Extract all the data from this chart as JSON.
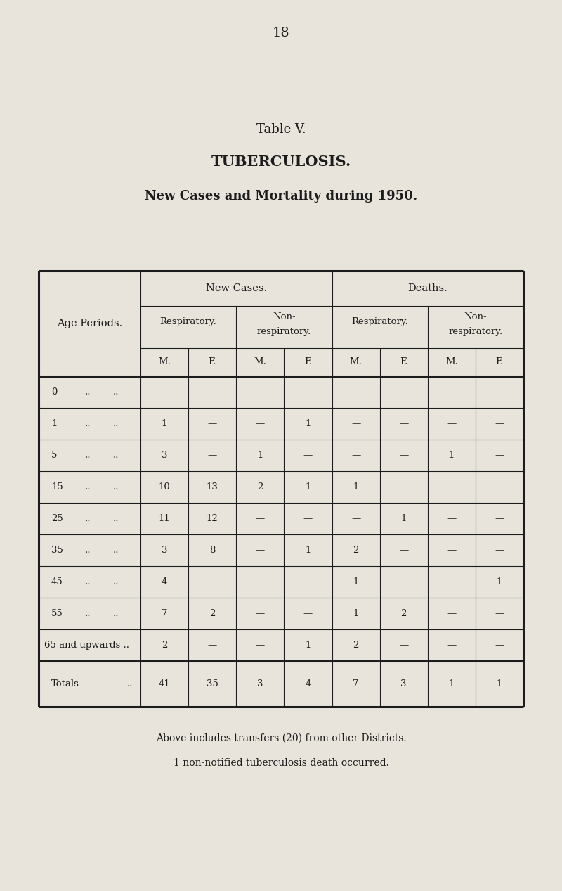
{
  "page_number": "18",
  "table_title": "Table V.",
  "table_subtitle": "TUBERCULOSIS.",
  "table_subtitle2": "New Cases and Mortality during 1950.",
  "background_color": "#e8e4db",
  "text_color": "#1c1c1c",
  "col_headers_level1": [
    "New Cases.",
    "Deaths."
  ],
  "col_headers_level2_nc": [
    "Respiratory.",
    "Non-\nrespiratory."
  ],
  "col_headers_level2_d": [
    "Respiratory.",
    "Non-\nrespiratory."
  ],
  "col_headers_level3": [
    "M.",
    "F.",
    "M.",
    "F.",
    "M.",
    "F.",
    "M.",
    "F."
  ],
  "row_label_header": "Age Periods.",
  "age_periods": [
    "0",
    "1",
    "5",
    "15",
    "25",
    "35",
    "45",
    "55",
    "65 and upwards .."
  ],
  "age_dots": [
    " ..  ..",
    " ..  ..",
    " ..  ..",
    " ..  ..",
    " ..  ..",
    " ..  ..",
    " ..  ..",
    " ..  ..",
    ""
  ],
  "data": [
    [
      "—",
      "—",
      "—",
      "—",
      "—",
      "—",
      "—",
      "—"
    ],
    [
      "1",
      "—",
      "—",
      "1",
      "—",
      "—",
      "—",
      "—"
    ],
    [
      "3",
      "—",
      "1",
      "—",
      "—",
      "—",
      "1",
      "—"
    ],
    [
      "10",
      "13",
      "2",
      "1",
      "1",
      "—",
      "—",
      "—"
    ],
    [
      "11",
      "12",
      "—",
      "—",
      "—",
      "1",
      "—",
      "—"
    ],
    [
      "3",
      "8",
      "—",
      "1",
      "2",
      "—",
      "—",
      "—"
    ],
    [
      "4",
      "—",
      "—",
      "—",
      "1",
      "—",
      "—",
      "1"
    ],
    [
      "7",
      "2",
      "—",
      "—",
      "1",
      "2",
      "—",
      "—"
    ],
    [
      "2",
      "—",
      "—",
      "1",
      "2",
      "—",
      "—",
      "—"
    ]
  ],
  "totals": [
    "41",
    "35",
    "3",
    "4",
    "7",
    "3",
    "1",
    "1"
  ],
  "footnote1": "Above includes transfers (20) from other Districts.",
  "footnote2": "1 non-notified tuberculosis death occurred."
}
